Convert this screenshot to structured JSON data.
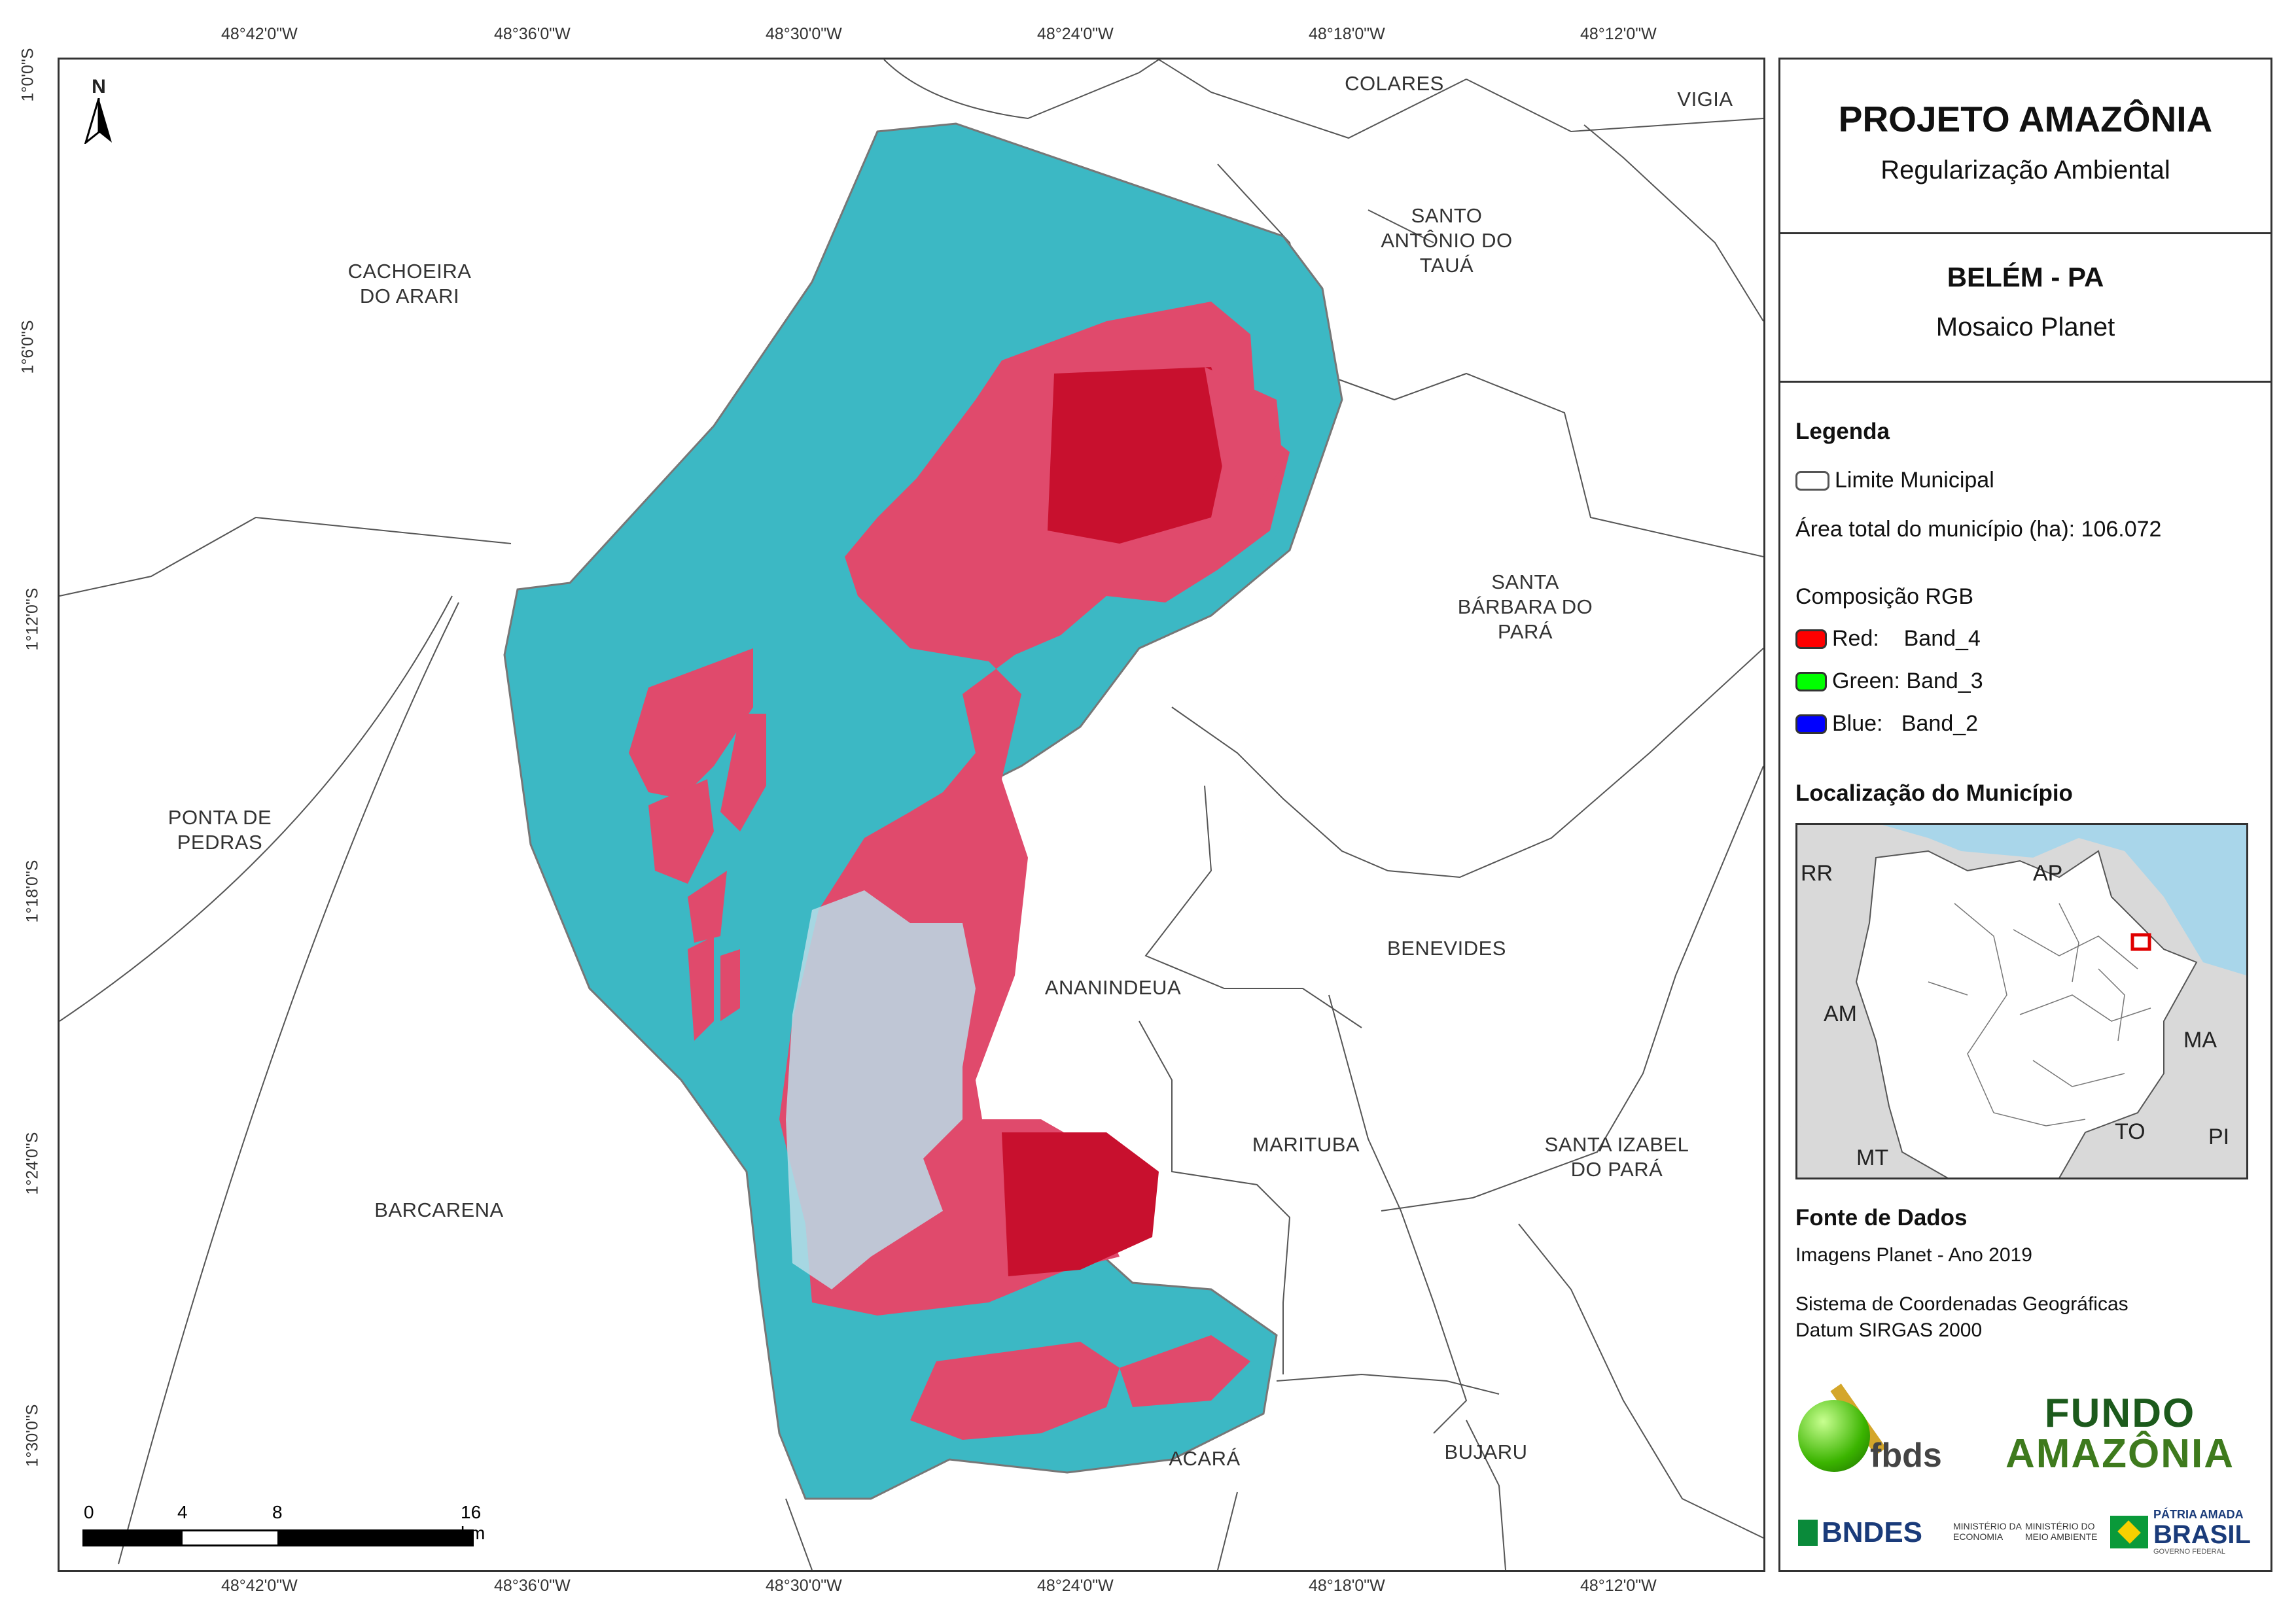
{
  "map": {
    "north_label": "N",
    "top_ticks": [
      "48°42'0\"W",
      "48°36'0\"W",
      "48°30'0\"W",
      "48°24'0\"W",
      "48°18'0\"W",
      "48°12'0\"W"
    ],
    "bottom_ticks": [
      "48°42'0\"W",
      "48°36'0\"W",
      "48°30'0\"W",
      "48°24'0\"W",
      "48°18'0\"W",
      "48°12'0\"W"
    ],
    "left_ticks": [
      "1°0'0\"S",
      "1°6'0\"S",
      "1°12'0\"S",
      "1°18'0\"S",
      "1°24'0\"S",
      "1°30'0\"S"
    ],
    "municipalities": {
      "colares": "COLARES",
      "vigia": "VIGIA",
      "santo_antonio": "SANTO\nANTÔNIO DO\nTAUÁ",
      "cachoeira": "CACHOEIRA\nDO ARARI",
      "santa_barbara": "SANTA\nBÁRBARA DO\nPARÁ",
      "ponta_pedras": "PONTA DE\nPEDRAS",
      "benevides": "BENEVIDES",
      "ananindeua": "ANANINDEUA",
      "marituba": "MARITUBA",
      "santa_izabel": "SANTA IZABEL\nDO PARÁ",
      "barcarena": "BARCARENA",
      "acara": "ACARÁ",
      "bujaru": "BUJARU"
    },
    "scale": {
      "labels": [
        "0",
        "4",
        "8",
        "16 km"
      ]
    }
  },
  "panel": {
    "title": "PROJETO AMAZÔNIA",
    "subtitle": "Regularização Ambiental",
    "place": "BELÉM - PA",
    "mosaic": "Mosaico Planet",
    "legend_heading": "Legenda",
    "legend_limit": "Limite Municipal",
    "area_text": "Área total do município (ha): 106.072",
    "rgb_heading": "Composição RGB",
    "rgb": [
      {
        "label": "Red:    Band_4",
        "color": "#ff0000"
      },
      {
        "label": "Green: Band_3",
        "color": "#00ff00"
      },
      {
        "label": "Blue:   Band_2",
        "color": "#0000ff"
      }
    ],
    "location_heading": "Localização do Município",
    "inset_labels": {
      "rr": "RR",
      "ap": "AP",
      "am": "AM",
      "ma": "MA",
      "to": "TO",
      "mt": "MT",
      "pi": "PI"
    },
    "source_heading": "Fonte de Dados",
    "source_line1": "Imagens Planet - Ano 2019",
    "source_line2": "Sistema de Coordenadas Geográficas",
    "source_line3": "Datum SIRGAS 2000",
    "logos": {
      "fbds": "fbds",
      "fundo1": "FUNDO",
      "fundo2": "AMAZÔNIA",
      "bndes": "BNDES",
      "min1": "MINISTÉRIO DA\nECONOMIA",
      "min2": "MINISTÉRIO DO\nMEIO AMBIENTE",
      "patria": "PÁTRIA AMADA",
      "brasil": "BRASIL",
      "gov": "GOVERNO FEDERAL"
    },
    "colors": {
      "water": "#3cb8c4",
      "urban": "#e04a6c",
      "veg": "#d8143c",
      "urban_light": "#b8dce8"
    }
  }
}
